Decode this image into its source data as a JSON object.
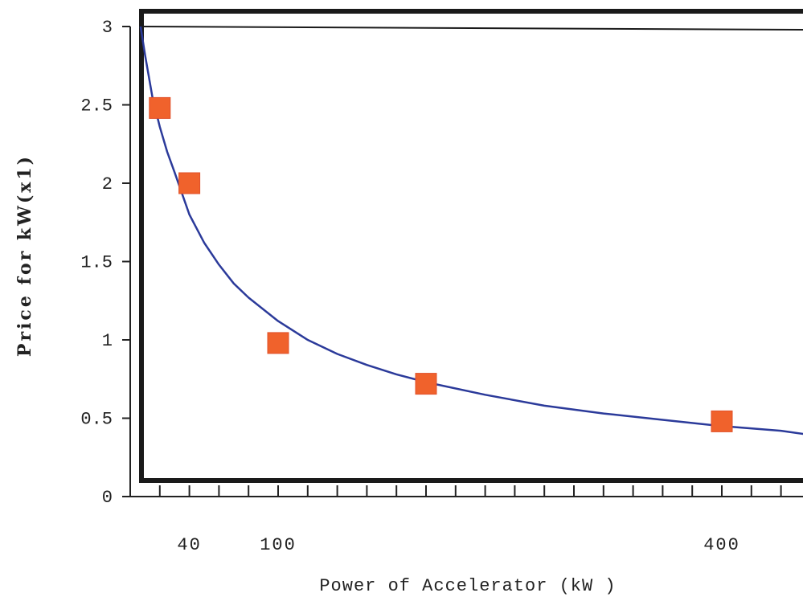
{
  "chart_data": {
    "type": "scatter",
    "xlabel": "Power of Accelerator (kW )",
    "ylabel": "Price for kW(x1)",
    "x_tick_labels": [
      {
        "value": 40,
        "label": "40"
      },
      {
        "value": 100,
        "label": "100"
      },
      {
        "value": 400,
        "label": "400"
      }
    ],
    "y_ticks": [
      {
        "value": 0,
        "label": "0"
      },
      {
        "value": 0.5,
        "label": "0.5"
      },
      {
        "value": 1,
        "label": "1"
      },
      {
        "value": 1.5,
        "label": "1.5"
      },
      {
        "value": 2,
        "label": "2"
      },
      {
        "value": 2.5,
        "label": "2.5"
      },
      {
        "value": 3,
        "label": "3"
      }
    ],
    "ylim": [
      0,
      3
    ],
    "xlim": [
      0,
      470
    ],
    "x_minor_tick_step": 20,
    "grid": false,
    "series": [
      {
        "kind": "points",
        "marker": "square",
        "color": "#f0622c",
        "x": [
          20,
          40,
          100,
          200,
          400
        ],
        "y": [
          2.48,
          2.0,
          0.98,
          0.72,
          0.48
        ]
      },
      {
        "kind": "fit-curve",
        "color": "#2b3a9a",
        "x": [
          7,
          10,
          15,
          20,
          25,
          30,
          40,
          50,
          60,
          70,
          80,
          100,
          120,
          140,
          160,
          180,
          200,
          240,
          280,
          320,
          360,
          400,
          440,
          470
        ],
        "y": [
          3.0,
          2.82,
          2.55,
          2.36,
          2.2,
          2.07,
          1.8,
          1.62,
          1.48,
          1.36,
          1.27,
          1.12,
          1.0,
          0.91,
          0.84,
          0.78,
          0.73,
          0.65,
          0.58,
          0.53,
          0.49,
          0.45,
          0.42,
          0.38
        ]
      }
    ]
  }
}
